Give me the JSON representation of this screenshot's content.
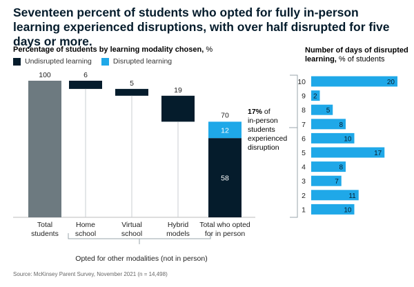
{
  "headline": "Seventeen percent of students who opted for fully in-person learning experienced disruptions, with over half disrupted for five days or more.",
  "left_chart": {
    "subtitle_bold": "Percentage of students by learning modality chosen,",
    "subtitle_unit": " %",
    "legend": [
      {
        "label": "Undisrupted learning",
        "color": "#051c2c"
      },
      {
        "label": "Disrupted learning",
        "color": "#1fa8e8"
      }
    ],
    "group_label": "Opted for other modalities (not in person)",
    "annotation": {
      "highlight": "17%",
      "lines": [
        " of",
        "in-person",
        "students",
        "experienced",
        "disruption"
      ]
    }
  },
  "right_chart": {
    "title_bold_1": "Number of days of disrupted",
    "title_bold_2": "learning,",
    "title_unit": " % of students"
  },
  "source": "Source: McKinsey Parent Survey, November 2021 (n = 14,498)",
  "chart_data": [
    {
      "type": "bar",
      "subtype": "waterfall",
      "title": "Percentage of students by learning modality chosen, %",
      "categories": [
        "Total students",
        "Home school",
        "Virtual school",
        "Hybrid models",
        "Total who opted for in person"
      ],
      "category_lines": [
        [
          "Total",
          "students"
        ],
        [
          "Home",
          "school"
        ],
        [
          "Virtual",
          "school"
        ],
        [
          "Hybrid",
          "models"
        ],
        [
          "Total who opted",
          "for in person"
        ]
      ],
      "totals": [
        100,
        6,
        5,
        19,
        70
      ],
      "series": [
        {
          "name": "Undisrupted learning",
          "values": [
            null,
            null,
            null,
            null,
            58
          ]
        },
        {
          "name": "Disrupted learning",
          "values": [
            null,
            null,
            null,
            null,
            12
          ]
        }
      ],
      "ylim": [
        0,
        100
      ],
      "colors": {
        "total": "#6d7a80",
        "decrease": "#051c2c",
        "undisrupted": "#051c2c",
        "disrupted": "#1fa8e8"
      }
    },
    {
      "type": "bar",
      "orientation": "horizontal",
      "title": "Number of days of disrupted learning, % of students",
      "categories": [
        "10",
        "9",
        "8",
        "7",
        "6",
        "5",
        "4",
        "3",
        "2",
        "1"
      ],
      "values": [
        20,
        2,
        5,
        8,
        10,
        17,
        8,
        7,
        11,
        10
      ],
      "xlim": [
        0,
        20
      ],
      "color": "#1fa8e8"
    }
  ]
}
